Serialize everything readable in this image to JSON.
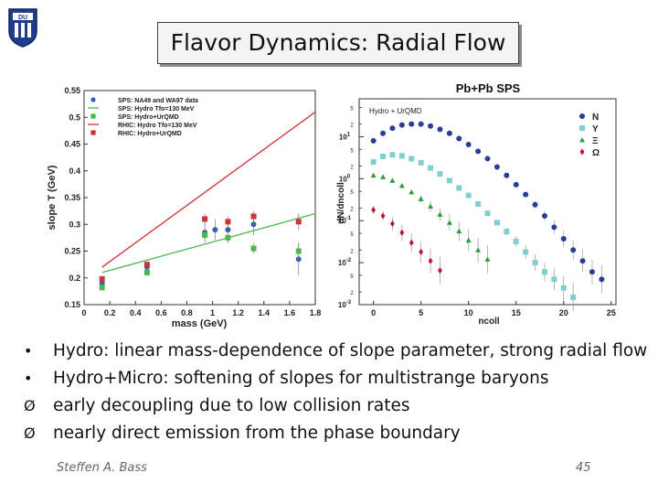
{
  "slide": {
    "title": "Flavor Dynamics: Radial Flow",
    "logo_text": "DU",
    "author": "Steffen A. Bass",
    "page": "45",
    "bullets": [
      {
        "marker": "•",
        "text": "Hydro: linear mass-dependence of slope parameter, strong radial flow"
      },
      {
        "marker": "•",
        "text": "Hydro+Micro: softening of slopes for multistrange baryons"
      },
      {
        "marker": "Ø",
        "text": "early decoupling due to low collision rates"
      },
      {
        "marker": "Ø",
        "text": "nearly direct emission from the phase boundary"
      }
    ]
  },
  "colors": {
    "blue": "#3a5fb0",
    "green": "#4cb84c",
    "red": "#cc3333",
    "teal": "#7fcfcf",
    "darkgreen": "#2e9a3a",
    "darkred": "#c0152f",
    "navy": "#2a3f94"
  },
  "chart_data": [
    {
      "type": "scatter",
      "xlabel": "mass (GeV)",
      "ylabel": "slope T (GeV)",
      "xlim": [
        0,
        1.8
      ],
      "ylim": [
        0.15,
        0.55
      ],
      "xticks": [
        0,
        0.2,
        0.4,
        0.6,
        0.8,
        1,
        1.2,
        1.4,
        1.6,
        1.8
      ],
      "yticks": [
        0.15,
        0.2,
        0.25,
        0.3,
        0.35,
        0.4,
        0.45,
        0.5,
        0.55
      ],
      "legend": [
        "SPS: NA49 and WA97 data",
        "SPS: Hydro Tfo=130 MeV",
        "SPS: Hydro+UrQMD",
        "RHIC: Hydro Tfo=130 MeV",
        "RHIC: Hydro+UrQMD"
      ],
      "legend_position": "top-left",
      "lines": [
        {
          "name": "SPS: Hydro Tfo=130 MeV",
          "color": "#4cb84c",
          "x": [
            0.14,
            1.8
          ],
          "y": [
            0.21,
            0.32
          ]
        },
        {
          "name": "RHIC: Hydro Tfo=130 MeV",
          "color": "#cc3333",
          "x": [
            0.14,
            1.8
          ],
          "y": [
            0.22,
            0.51
          ]
        }
      ],
      "series": [
        {
          "name": "SPS: NA49 and WA97 data",
          "marker": "circle",
          "color": "#3a5fb0",
          "x": [
            0.14,
            0.49,
            0.94,
            1.02,
            1.12,
            1.32,
            1.67
          ],
          "y": [
            0.19,
            0.22,
            0.285,
            0.29,
            0.29,
            0.3,
            0.235
          ],
          "err": [
            0.01,
            0.01,
            0.02,
            0.02,
            0.02,
            0.02,
            0.03
          ]
        },
        {
          "name": "SPS: Hydro+UrQMD",
          "marker": "square",
          "color": "#4cb84c",
          "x": [
            0.14,
            0.49,
            0.94,
            1.12,
            1.32,
            1.67
          ],
          "y": [
            0.182,
            0.21,
            0.28,
            0.275,
            0.255,
            0.25
          ],
          "err": [
            0.005,
            0.005,
            0.01,
            0.01,
            0.01,
            0.015
          ]
        },
        {
          "name": "RHIC: Hydro+UrQMD",
          "marker": "square",
          "color": "#cc3333",
          "x": [
            0.14,
            0.49,
            0.94,
            1.12,
            1.32,
            1.67
          ],
          "y": [
            0.198,
            0.225,
            0.31,
            0.305,
            0.315,
            0.305
          ],
          "err": [
            0.005,
            0.005,
            0.01,
            0.01,
            0.01,
            0.015
          ]
        }
      ]
    },
    {
      "type": "scatter",
      "title": "Pb+Pb SPS",
      "annotation": "Hydro + UrQMD",
      "xlabel": "ncoll",
      "ylabel": "dN/dncoll",
      "xlim": [
        -1.5,
        25.5
      ],
      "xticks": [
        0,
        5,
        10,
        15,
        20,
        25
      ],
      "ylog": true,
      "ylim": [
        0.001,
        80
      ],
      "yticks": [
        {
          "value": 10,
          "label": "10^1"
        },
        {
          "value": 1,
          "label": "10^0"
        },
        {
          "value": 0.1,
          "label": "10^-1"
        },
        {
          "value": 0.01,
          "label": "10^-2"
        },
        {
          "value": 0.001,
          "label": "10^-3"
        }
      ],
      "minor_labels": [
        {
          "value": 50,
          "label": "5"
        },
        {
          "value": 20,
          "label": "2"
        },
        {
          "value": 5,
          "label": "5"
        },
        {
          "value": 2,
          "label": "2"
        },
        {
          "value": 0.5,
          "label": "5"
        },
        {
          "value": 0.2,
          "label": "2"
        },
        {
          "value": 0.05,
          "label": "5"
        },
        {
          "value": 0.02,
          "label": "2"
        },
        {
          "value": 0.005,
          "label": "5"
        },
        {
          "value": 0.002,
          "label": "2"
        }
      ],
      "legend_position": "right",
      "series": [
        {
          "name": "N",
          "marker": "circle",
          "color": "#2a3f94",
          "x": [
            0,
            1,
            2,
            3,
            4,
            5,
            6,
            7,
            8,
            9,
            10,
            11,
            12,
            13,
            14,
            15,
            16,
            17,
            18,
            19,
            20,
            21,
            22,
            23,
            24
          ],
          "y": [
            8,
            12,
            16,
            19,
            20,
            20,
            18,
            15,
            12,
            9,
            6.5,
            4.5,
            3,
            1.9,
            1.2,
            0.72,
            0.42,
            0.24,
            0.13,
            0.07,
            0.037,
            0.02,
            0.011,
            0.006,
            0.004
          ]
        },
        {
          "name": "Y",
          "marker": "square",
          "color": "#7fcfcf",
          "x": [
            0,
            1,
            2,
            3,
            4,
            5,
            6,
            7,
            8,
            9,
            10,
            11,
            12,
            13,
            14,
            15,
            16,
            17,
            18,
            19,
            20,
            21
          ],
          "y": [
            2.5,
            3.4,
            3.7,
            3.5,
            3.0,
            2.4,
            1.8,
            1.3,
            0.9,
            0.6,
            0.4,
            0.25,
            0.15,
            0.09,
            0.055,
            0.032,
            0.018,
            0.01,
            0.006,
            0.004,
            0.0025,
            0.0015
          ]
        },
        {
          "name": "Ξ",
          "marker": "triangle",
          "color": "#2e9a3a",
          "x": [
            0,
            1,
            2,
            3,
            4,
            5,
            6,
            7,
            8,
            9,
            10,
            11,
            12
          ],
          "y": [
            1.2,
            1.1,
            0.9,
            0.68,
            0.48,
            0.33,
            0.22,
            0.14,
            0.09,
            0.056,
            0.034,
            0.02,
            0.012
          ]
        },
        {
          "name": "Ω",
          "marker": "diamond",
          "color": "#c0152f",
          "x": [
            0,
            1,
            2,
            3,
            4,
            5,
            6,
            7
          ],
          "y": [
            0.18,
            0.13,
            0.085,
            0.052,
            0.03,
            0.018,
            0.011,
            0.0065
          ]
        }
      ]
    }
  ]
}
